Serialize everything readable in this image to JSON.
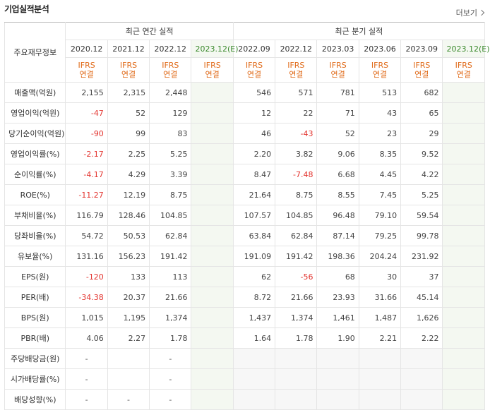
{
  "section_title": "기업실적분석",
  "more_label": "더보기",
  "header": {
    "row_label": "주요재무정보",
    "annual_group": "최근 연간 실적",
    "quarter_group": "최근 분기 실적",
    "annual_periods": [
      "2020.12",
      "2021.12",
      "2022.12",
      "2023.12(E)"
    ],
    "quarter_periods": [
      "2022.09",
      "2022.12",
      "2023.03",
      "2023.06",
      "2023.09",
      "2023.12(E)"
    ],
    "ifrs_top": "IFRS",
    "ifrs_bottom": "연결"
  },
  "rows": [
    {
      "label": "매출액(억원)",
      "annual": [
        "2,155",
        "2,315",
        "2,448",
        ""
      ],
      "quarter": [
        "546",
        "571",
        "781",
        "513",
        "682",
        ""
      ]
    },
    {
      "label": "영업이익(억원)",
      "annual": [
        "-47",
        "52",
        "129",
        ""
      ],
      "quarter": [
        "12",
        "22",
        "71",
        "43",
        "65",
        ""
      ]
    },
    {
      "label": "당기순이익(억원)",
      "annual": [
        "-90",
        "99",
        "83",
        ""
      ],
      "quarter": [
        "46",
        "-43",
        "52",
        "23",
        "29",
        ""
      ]
    },
    {
      "label": "영업이익률(%)",
      "annual": [
        "-2.17",
        "2.25",
        "5.25",
        ""
      ],
      "quarter": [
        "2.20",
        "3.82",
        "9.06",
        "8.35",
        "9.52",
        ""
      ]
    },
    {
      "label": "순이익률(%)",
      "annual": [
        "-4.17",
        "4.29",
        "3.39",
        ""
      ],
      "quarter": [
        "8.47",
        "-7.48",
        "6.68",
        "4.45",
        "4.22",
        ""
      ]
    },
    {
      "label": "ROE(%)",
      "annual": [
        "-11.27",
        "12.19",
        "8.75",
        ""
      ],
      "quarter": [
        "21.64",
        "8.75",
        "8.55",
        "7.45",
        "5.25",
        ""
      ]
    },
    {
      "label": "부채비율(%)",
      "annual": [
        "116.79",
        "128.46",
        "104.85",
        ""
      ],
      "quarter": [
        "107.57",
        "104.85",
        "96.48",
        "79.10",
        "59.54",
        ""
      ]
    },
    {
      "label": "당좌비율(%)",
      "annual": [
        "54.72",
        "50.53",
        "62.84",
        ""
      ],
      "quarter": [
        "63.84",
        "62.84",
        "87.14",
        "79.25",
        "99.78",
        ""
      ]
    },
    {
      "label": "유보율(%)",
      "annual": [
        "131.16",
        "156.23",
        "191.42",
        ""
      ],
      "quarter": [
        "191.09",
        "191.42",
        "198.36",
        "204.24",
        "231.92",
        ""
      ]
    },
    {
      "label": "EPS(원)",
      "annual": [
        "-120",
        "133",
        "113",
        ""
      ],
      "quarter": [
        "62",
        "-56",
        "68",
        "30",
        "37",
        ""
      ]
    },
    {
      "label": "PER(배)",
      "annual": [
        "-34.38",
        "20.37",
        "21.66",
        ""
      ],
      "quarter": [
        "8.72",
        "21.66",
        "23.93",
        "31.66",
        "45.14",
        ""
      ]
    },
    {
      "label": "BPS(원)",
      "annual": [
        "1,015",
        "1,195",
        "1,374",
        ""
      ],
      "quarter": [
        "1,437",
        "1,374",
        "1,461",
        "1,487",
        "1,626",
        ""
      ]
    },
    {
      "label": "PBR(배)",
      "annual": [
        "4.06",
        "2.27",
        "1.78",
        ""
      ],
      "quarter": [
        "1.64",
        "1.78",
        "1.90",
        "2.21",
        "2.22",
        ""
      ]
    },
    {
      "label": "주당배당금(원)",
      "annual": [
        "-",
        "",
        "-",
        ""
      ],
      "quarter": [
        "",
        "",
        "",
        "",
        "",
        ""
      ]
    },
    {
      "label": "시가배당률(%)",
      "annual": [
        "-",
        "",
        "-",
        ""
      ],
      "quarter": [
        "",
        "",
        "",
        "",
        "",
        ""
      ]
    },
    {
      "label": "배당성향(%)",
      "annual": [
        "-",
        "-",
        "-",
        ""
      ],
      "quarter": [
        "",
        "",
        "",
        "",
        "",
        ""
      ]
    }
  ],
  "colors": {
    "negative": "#e3342f",
    "ifrs": "#e06b1a",
    "estimate_header": "#3b8a2d",
    "estimate_bg": "#f4f8f1",
    "quarter_dividend_bg": "#f7f7f7"
  }
}
